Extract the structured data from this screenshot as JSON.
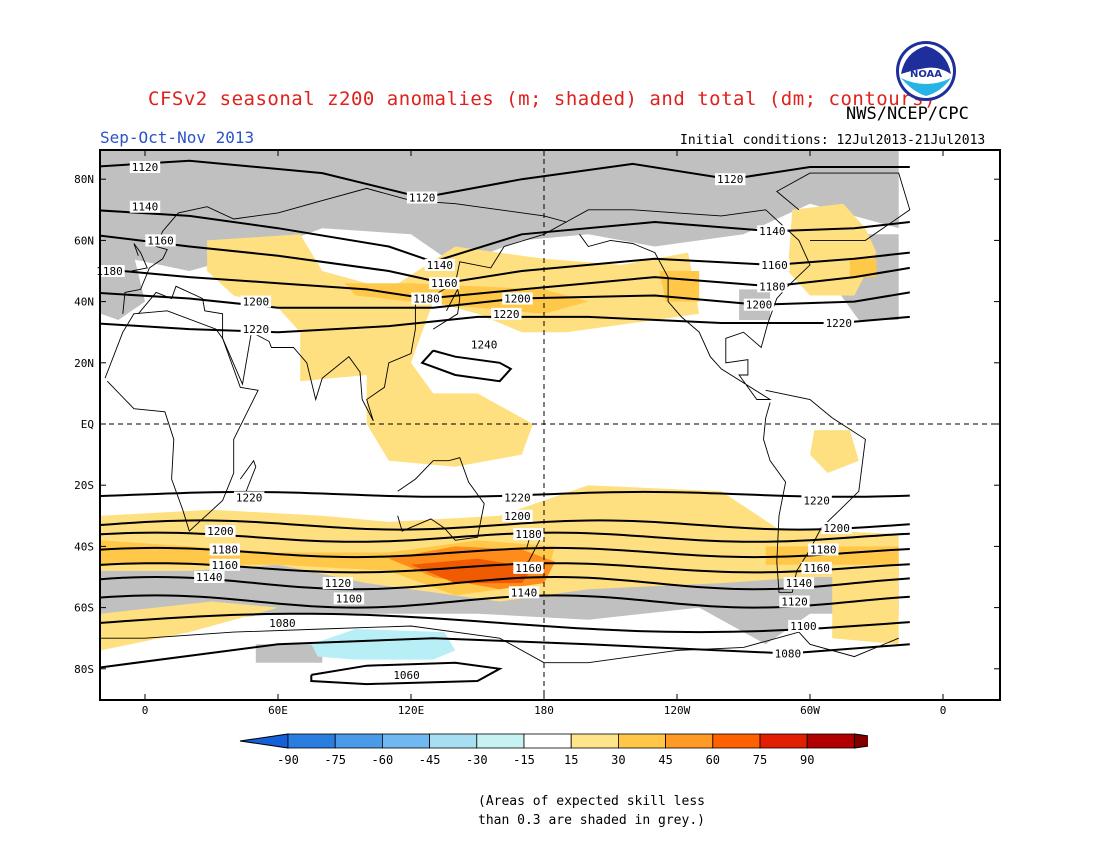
{
  "header": {
    "title": "CFSv2 seasonal z200 anomalies (m; shaded) and total (dm; contours)",
    "agency": "NWS/NCEP/CPC",
    "logo_text": "NOAA",
    "season": "Sep-Oct-Nov 2013",
    "initial_conditions": "Initial conditions: 12Jul2013-21Jul2013"
  },
  "map": {
    "lat_labels": [
      "80N",
      "60N",
      "40N",
      "20N",
      "EQ",
      "20S",
      "40S",
      "60S",
      "80S"
    ],
    "lon_labels": [
      "0",
      "60E",
      "120E",
      "180",
      "120W",
      "60W",
      "0"
    ],
    "contour_labels": [
      {
        "text": "1120",
        "lon": 0,
        "lat": 84
      },
      {
        "text": "1120",
        "lon": 125,
        "lat": 74
      },
      {
        "text": "1120",
        "lon": 264,
        "lat": 80
      },
      {
        "text": "1140",
        "lon": 0,
        "lat": 71
      },
      {
        "text": "1140",
        "lon": 133,
        "lat": 52
      },
      {
        "text": "1140",
        "lon": 283,
        "lat": 63
      },
      {
        "text": "1160",
        "lon": 7,
        "lat": 60
      },
      {
        "text": "1160",
        "lon": 135,
        "lat": 46
      },
      {
        "text": "1160",
        "lon": 284,
        "lat": 52
      },
      {
        "text": "1180",
        "lon": -16,
        "lat": 50
      },
      {
        "text": "1180",
        "lon": 127,
        "lat": 41
      },
      {
        "text": "1180",
        "lon": 283,
        "lat": 45
      },
      {
        "text": "1200",
        "lon": 50,
        "lat": 40
      },
      {
        "text": "1200",
        "lon": 168,
        "lat": 41
      },
      {
        "text": "1200",
        "lon": 277,
        "lat": 39
      },
      {
        "text": "1220",
        "lon": 50,
        "lat": 31
      },
      {
        "text": "1220",
        "lon": 163,
        "lat": 36
      },
      {
        "text": "1220",
        "lon": 313,
        "lat": 33
      },
      {
        "text": "1240",
        "lon": 153,
        "lat": 26
      },
      {
        "text": "1220",
        "lon": 47,
        "lat": -24
      },
      {
        "text": "1220",
        "lon": 168,
        "lat": -24
      },
      {
        "text": "1220",
        "lon": 303,
        "lat": -25
      },
      {
        "text": "1200",
        "lon": 34,
        "lat": -35
      },
      {
        "text": "1200",
        "lon": 168,
        "lat": -30
      },
      {
        "text": "1200",
        "lon": 312,
        "lat": -34
      },
      {
        "text": "1180",
        "lon": 36,
        "lat": -41
      },
      {
        "text": "1180",
        "lon": 173,
        "lat": -36
      },
      {
        "text": "1180",
        "lon": 306,
        "lat": -41
      },
      {
        "text": "1160",
        "lon": 36,
        "lat": -46
      },
      {
        "text": "1160",
        "lon": 173,
        "lat": -47
      },
      {
        "text": "1160",
        "lon": 303,
        "lat": -47
      },
      {
        "text": "1140",
        "lon": 29,
        "lat": -50
      },
      {
        "text": "1140",
        "lon": 171,
        "lat": -55
      },
      {
        "text": "1140",
        "lon": 295,
        "lat": -52
      },
      {
        "text": "1120",
        "lon": 87,
        "lat": -52
      },
      {
        "text": "1120",
        "lon": 293,
        "lat": -58
      },
      {
        "text": "1100",
        "lon": 92,
        "lat": -57
      },
      {
        "text": "1100",
        "lon": 297,
        "lat": -66
      },
      {
        "text": "1080",
        "lon": 62,
        "lat": -65
      },
      {
        "text": "1080",
        "lon": 290,
        "lat": -75
      },
      {
        "text": "1060",
        "lon": 118,
        "lat": -82
      }
    ]
  },
  "colorbar": {
    "tick_labels": [
      "-90",
      "-75",
      "-60",
      "-45",
      "-30",
      "-15",
      "15",
      "30",
      "45",
      "60",
      "75",
      "90"
    ],
    "colors": [
      "#1560d8",
      "#2a7ee0",
      "#4a9ae8",
      "#70b8f0",
      "#a8def2",
      "#c8f2f2",
      "#ffffff",
      "#ffe58a",
      "#ffc648",
      "#ff9a24",
      "#ff6000",
      "#e02000",
      "#b00000",
      "#800000"
    ]
  },
  "footnote": {
    "line1": "(Areas of expected skill less",
    "line2": "than 0.3 are shaded in grey.)"
  },
  "legend_colors": {
    "grey": "#c0c0c0",
    "light_yellow": "#ffe080",
    "yellow": "#ffc848",
    "orange": "#ff8c1a",
    "dark_orange": "#f05a00",
    "light_blue": "#b8eef6"
  }
}
